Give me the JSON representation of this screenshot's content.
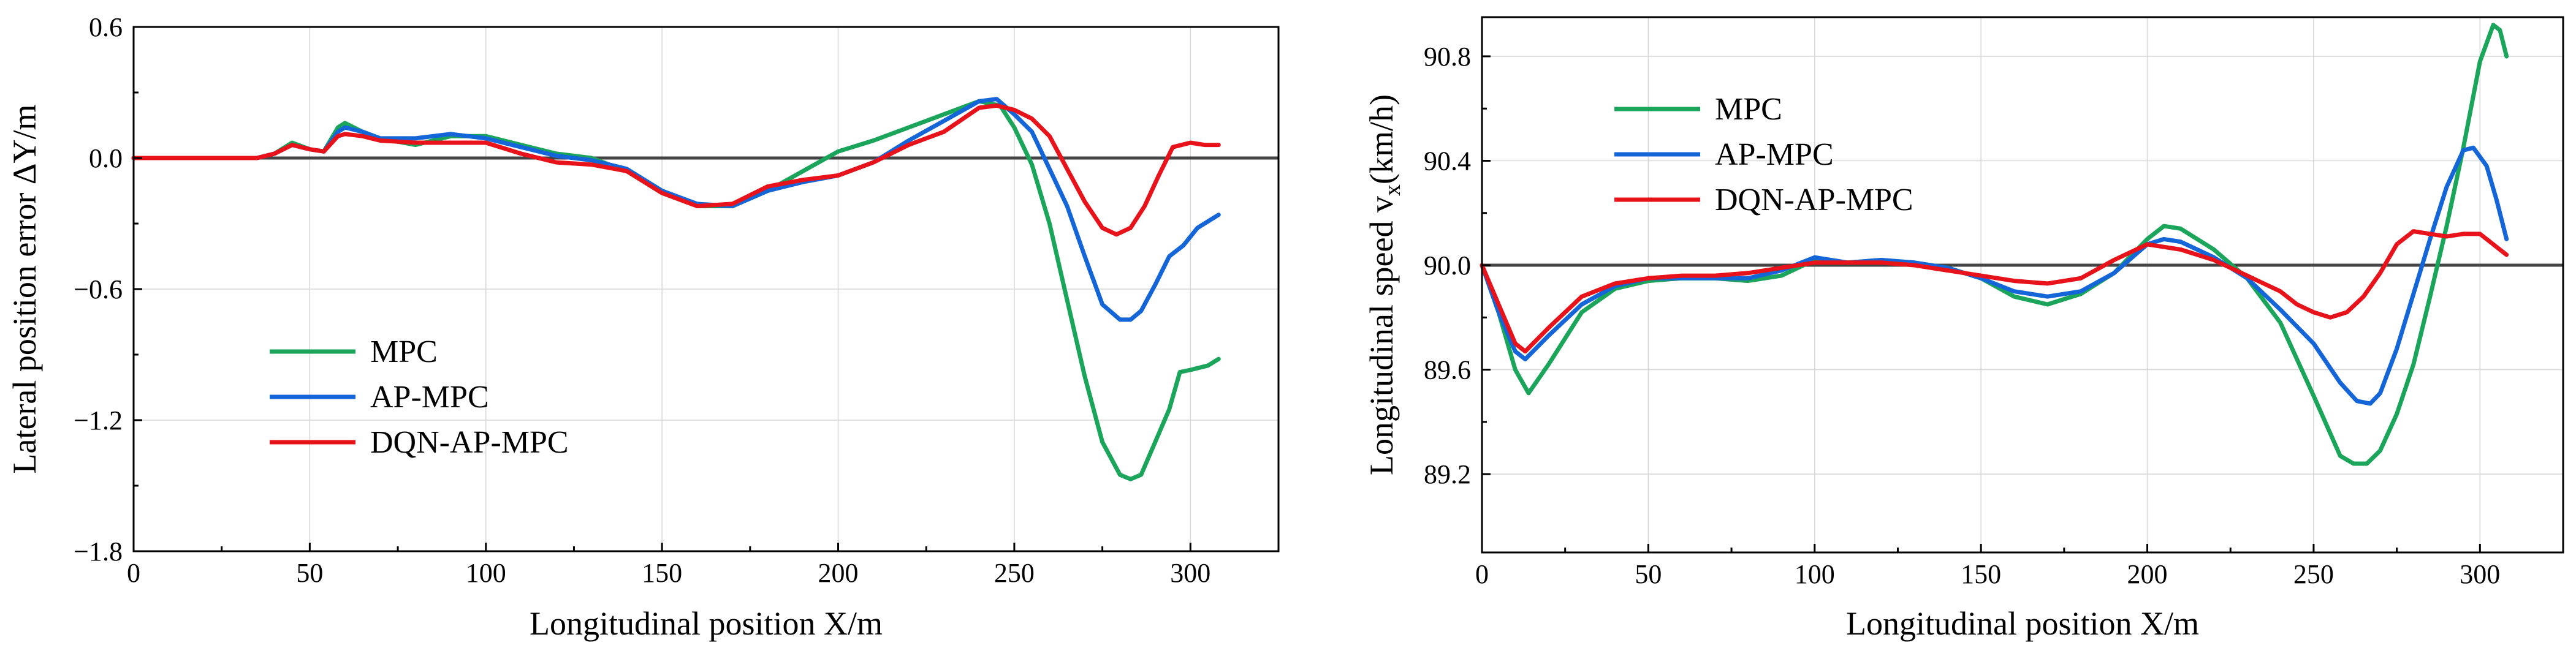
{
  "colors": {
    "mpc": "#1aa55a",
    "apmpc": "#1466d8",
    "dqn": "#e8121a"
  },
  "chart_data": [
    {
      "type": "line",
      "xlabel": "Longitudinal position X/m",
      "ylabel": "Lateral position error ΔY/m",
      "xlim": [
        0,
        325
      ],
      "ylim": [
        -1.8,
        0.6
      ],
      "xticks": [
        0,
        50,
        100,
        150,
        200,
        250,
        300
      ],
      "yticks": [
        -1.8,
        -1.2,
        -0.6,
        0.0,
        0.6
      ],
      "ytick_labels": [
        "−1.8",
        "−1.2",
        "−0.6",
        "0.0",
        "0.6"
      ],
      "reference_y": 0.0,
      "legend": "lower-left",
      "series": [
        {
          "name": "MPC",
          "color_key": "mpc",
          "points": [
            [
              0,
              0
            ],
            [
              35,
              0
            ],
            [
              40,
              0.02
            ],
            [
              45,
              0.07
            ],
            [
              50,
              0.04
            ],
            [
              54,
              0.03
            ],
            [
              58,
              0.14
            ],
            [
              60,
              0.16
            ],
            [
              65,
              0.12
            ],
            [
              70,
              0.09
            ],
            [
              80,
              0.06
            ],
            [
              90,
              0.1
            ],
            [
              100,
              0.1
            ],
            [
              110,
              0.06
            ],
            [
              120,
              0.02
            ],
            [
              130,
              0.0
            ],
            [
              140,
              -0.06
            ],
            [
              150,
              -0.16
            ],
            [
              160,
              -0.22
            ],
            [
              170,
              -0.22
            ],
            [
              180,
              -0.15
            ],
            [
              190,
              -0.06
            ],
            [
              200,
              0.03
            ],
            [
              210,
              0.08
            ],
            [
              220,
              0.14
            ],
            [
              230,
              0.2
            ],
            [
              240,
              0.26
            ],
            [
              246,
              0.24
            ],
            [
              250,
              0.14
            ],
            [
              255,
              -0.03
            ],
            [
              260,
              -0.3
            ],
            [
              265,
              -0.65
            ],
            [
              270,
              -1.0
            ],
            [
              275,
              -1.3
            ],
            [
              280,
              -1.45
            ],
            [
              283,
              -1.47
            ],
            [
              286,
              -1.45
            ],
            [
              290,
              -1.3
            ],
            [
              294,
              -1.15
            ],
            [
              297,
              -0.98
            ],
            [
              300,
              -0.97
            ],
            [
              305,
              -0.95
            ],
            [
              308,
              -0.92
            ]
          ]
        },
        {
          "name": "AP-MPC",
          "color_key": "apmpc",
          "points": [
            [
              0,
              0
            ],
            [
              35,
              0
            ],
            [
              40,
              0.02
            ],
            [
              45,
              0.06
            ],
            [
              50,
              0.04
            ],
            [
              54,
              0.03
            ],
            [
              58,
              0.12
            ],
            [
              60,
              0.14
            ],
            [
              65,
              0.12
            ],
            [
              70,
              0.09
            ],
            [
              80,
              0.09
            ],
            [
              90,
              0.11
            ],
            [
              100,
              0.09
            ],
            [
              110,
              0.05
            ],
            [
              120,
              0.01
            ],
            [
              130,
              -0.01
            ],
            [
              140,
              -0.05
            ],
            [
              150,
              -0.15
            ],
            [
              160,
              -0.21
            ],
            [
              170,
              -0.22
            ],
            [
              180,
              -0.15
            ],
            [
              190,
              -0.11
            ],
            [
              200,
              -0.08
            ],
            [
              210,
              -0.02
            ],
            [
              220,
              0.08
            ],
            [
              230,
              0.17
            ],
            [
              240,
              0.26
            ],
            [
              245,
              0.27
            ],
            [
              250,
              0.2
            ],
            [
              255,
              0.12
            ],
            [
              260,
              -0.05
            ],
            [
              265,
              -0.22
            ],
            [
              270,
              -0.45
            ],
            [
              275,
              -0.67
            ],
            [
              280,
              -0.74
            ],
            [
              283,
              -0.74
            ],
            [
              286,
              -0.7
            ],
            [
              290,
              -0.58
            ],
            [
              294,
              -0.45
            ],
            [
              298,
              -0.4
            ],
            [
              302,
              -0.32
            ],
            [
              305,
              -0.29
            ],
            [
              308,
              -0.26
            ]
          ]
        },
        {
          "name": "DQN-AP-MPC",
          "color_key": "dqn",
          "points": [
            [
              0,
              0
            ],
            [
              35,
              0
            ],
            [
              40,
              0.02
            ],
            [
              45,
              0.06
            ],
            [
              50,
              0.04
            ],
            [
              54,
              0.03
            ],
            [
              58,
              0.1
            ],
            [
              60,
              0.11
            ],
            [
              65,
              0.1
            ],
            [
              70,
              0.08
            ],
            [
              80,
              0.07
            ],
            [
              90,
              0.07
            ],
            [
              100,
              0.07
            ],
            [
              110,
              0.02
            ],
            [
              120,
              -0.02
            ],
            [
              130,
              -0.03
            ],
            [
              140,
              -0.06
            ],
            [
              150,
              -0.16
            ],
            [
              160,
              -0.22
            ],
            [
              170,
              -0.21
            ],
            [
              180,
              -0.13
            ],
            [
              190,
              -0.1
            ],
            [
              200,
              -0.08
            ],
            [
              210,
              -0.02
            ],
            [
              220,
              0.06
            ],
            [
              230,
              0.12
            ],
            [
              240,
              0.23
            ],
            [
              245,
              0.24
            ],
            [
              250,
              0.22
            ],
            [
              255,
              0.18
            ],
            [
              260,
              0.1
            ],
            [
              265,
              -0.05
            ],
            [
              270,
              -0.2
            ],
            [
              275,
              -0.32
            ],
            [
              279,
              -0.35
            ],
            [
              283,
              -0.32
            ],
            [
              287,
              -0.22
            ],
            [
              291,
              -0.08
            ],
            [
              295,
              0.05
            ],
            [
              300,
              0.07
            ],
            [
              304,
              0.06
            ],
            [
              308,
              0.06
            ]
          ]
        }
      ]
    },
    {
      "type": "line",
      "xlabel": "Longitudinal position X/m",
      "ylabel_main": "Longitudinal speed v",
      "ylabel_sub": "x",
      "ylabel_unit": "(km/h)",
      "xlim": [
        0,
        325
      ],
      "ylim": [
        88.9,
        90.95
      ],
      "xticks": [
        0,
        50,
        100,
        150,
        200,
        250,
        300
      ],
      "yticks": [
        89.2,
        89.6,
        90.0,
        90.4,
        90.8
      ],
      "ytick_labels": [
        "89.2",
        "89.6",
        "90.0",
        "90.4",
        "90.8"
      ],
      "reference_y": 90.0,
      "legend": "top-left",
      "series": [
        {
          "name": "MPC",
          "color_key": "mpc",
          "points": [
            [
              0,
              90.0
            ],
            [
              5,
              89.82
            ],
            [
              10,
              89.6
            ],
            [
              14,
              89.51
            ],
            [
              20,
              89.62
            ],
            [
              30,
              89.82
            ],
            [
              40,
              89.91
            ],
            [
              50,
              89.94
            ],
            [
              60,
              89.95
            ],
            [
              70,
              89.95
            ],
            [
              80,
              89.94
            ],
            [
              90,
              89.96
            ],
            [
              100,
              90.02
            ],
            [
              110,
              90.01
            ],
            [
              120,
              90.02
            ],
            [
              130,
              90.01
            ],
            [
              140,
              89.99
            ],
            [
              150,
              89.95
            ],
            [
              160,
              89.88
            ],
            [
              170,
              89.85
            ],
            [
              180,
              89.89
            ],
            [
              190,
              89.97
            ],
            [
              200,
              90.1
            ],
            [
              205,
              90.15
            ],
            [
              210,
              90.14
            ],
            [
              220,
              90.06
            ],
            [
              230,
              89.95
            ],
            [
              240,
              89.78
            ],
            [
              250,
              89.5
            ],
            [
              258,
              89.27
            ],
            [
              262,
              89.24
            ],
            [
              266,
              89.24
            ],
            [
              270,
              89.29
            ],
            [
              275,
              89.43
            ],
            [
              280,
              89.62
            ],
            [
              285,
              89.88
            ],
            [
              290,
              90.15
            ],
            [
              295,
              90.45
            ],
            [
              300,
              90.78
            ],
            [
              304,
              90.92
            ],
            [
              306,
              90.9
            ],
            [
              308,
              90.8
            ]
          ]
        },
        {
          "name": "AP-MPC",
          "color_key": "apmpc",
          "points": [
            [
              0,
              90.0
            ],
            [
              5,
              89.82
            ],
            [
              10,
              89.67
            ],
            [
              13,
              89.64
            ],
            [
              20,
              89.73
            ],
            [
              30,
              89.85
            ],
            [
              40,
              89.92
            ],
            [
              50,
              89.95
            ],
            [
              60,
              89.95
            ],
            [
              70,
              89.95
            ],
            [
              80,
              89.95
            ],
            [
              90,
              89.98
            ],
            [
              100,
              90.03
            ],
            [
              110,
              90.01
            ],
            [
              120,
              90.02
            ],
            [
              130,
              90.01
            ],
            [
              140,
              89.99
            ],
            [
              150,
              89.95
            ],
            [
              160,
              89.9
            ],
            [
              170,
              89.88
            ],
            [
              180,
              89.9
            ],
            [
              190,
              89.97
            ],
            [
              200,
              90.08
            ],
            [
              205,
              90.1
            ],
            [
              210,
              90.09
            ],
            [
              220,
              90.03
            ],
            [
              230,
              89.95
            ],
            [
              240,
              89.83
            ],
            [
              250,
              89.7
            ],
            [
              258,
              89.55
            ],
            [
              263,
              89.48
            ],
            [
              267,
              89.47
            ],
            [
              270,
              89.51
            ],
            [
              275,
              89.68
            ],
            [
              280,
              89.89
            ],
            [
              285,
              90.1
            ],
            [
              290,
              90.3
            ],
            [
              295,
              90.44
            ],
            [
              298,
              90.45
            ],
            [
              302,
              90.38
            ],
            [
              305,
              90.25
            ],
            [
              308,
              90.1
            ]
          ]
        },
        {
          "name": "DQN-AP-MPC",
          "color_key": "dqn",
          "points": [
            [
              0,
              90.0
            ],
            [
              5,
              89.85
            ],
            [
              10,
              89.7
            ],
            [
              13,
              89.67
            ],
            [
              20,
              89.76
            ],
            [
              30,
              89.88
            ],
            [
              40,
              89.93
            ],
            [
              50,
              89.95
            ],
            [
              60,
              89.96
            ],
            [
              70,
              89.96
            ],
            [
              80,
              89.97
            ],
            [
              90,
              89.99
            ],
            [
              100,
              90.01
            ],
            [
              110,
              90.01
            ],
            [
              120,
              90.01
            ],
            [
              130,
              90.0
            ],
            [
              140,
              89.98
            ],
            [
              150,
              89.96
            ],
            [
              160,
              89.94
            ],
            [
              170,
              89.93
            ],
            [
              180,
              89.95
            ],
            [
              190,
              90.02
            ],
            [
              200,
              90.08
            ],
            [
              210,
              90.06
            ],
            [
              220,
              90.02
            ],
            [
              230,
              89.96
            ],
            [
              240,
              89.9
            ],
            [
              245,
              89.85
            ],
            [
              250,
              89.82
            ],
            [
              255,
              89.8
            ],
            [
              260,
              89.82
            ],
            [
              265,
              89.88
            ],
            [
              270,
              89.97
            ],
            [
              275,
              90.08
            ],
            [
              280,
              90.13
            ],
            [
              285,
              90.12
            ],
            [
              290,
              90.11
            ],
            [
              295,
              90.12
            ],
            [
              300,
              90.12
            ],
            [
              305,
              90.07
            ],
            [
              308,
              90.04
            ]
          ]
        }
      ]
    }
  ]
}
